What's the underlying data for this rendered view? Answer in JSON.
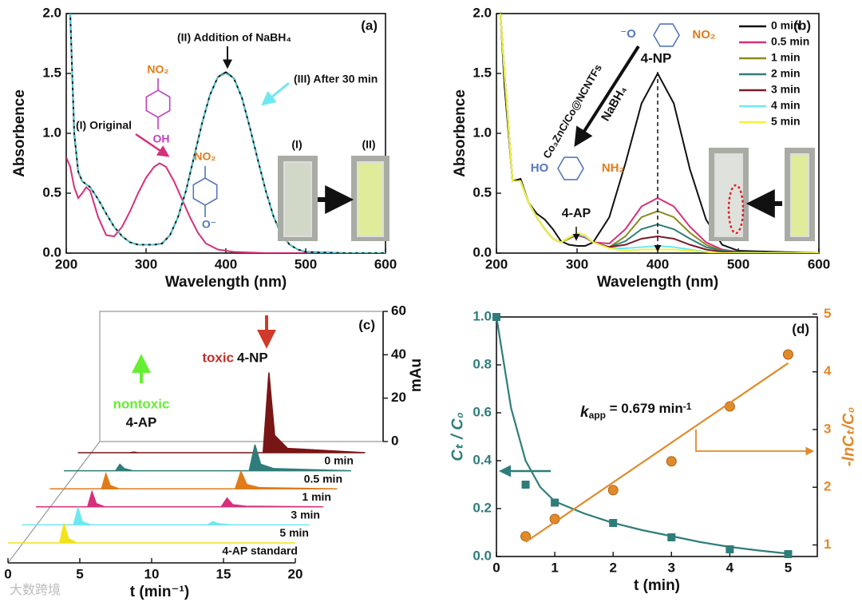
{
  "chart_data": [
    {
      "type": "line",
      "label": "(a)",
      "xlabel": "Wavelength (nm)",
      "ylabel": "Absorbence",
      "xlim": [
        200,
        600
      ],
      "ylim": [
        0,
        2.0
      ],
      "xticks": [
        200,
        300,
        400,
        500,
        600
      ],
      "yticks": [
        {
          "value": 0,
          "label": "0.0"
        },
        {
          "value": 0.5,
          "label": "0.5"
        },
        {
          "value": 1,
          "label": "1.0"
        },
        {
          "value": 1.5,
          "label": "1.5"
        },
        {
          "value": 2,
          "label": "2.0"
        }
      ],
      "series": [
        {
          "name": "(I) Original",
          "color": "#d6307a",
          "x": [
            200,
            205,
            210,
            215,
            220,
            225,
            230,
            240,
            250,
            260,
            270,
            280,
            290,
            300,
            310,
            317,
            325,
            335,
            345,
            355,
            365,
            375,
            390,
            410,
            450,
            500,
            600
          ],
          "values": [
            0.8,
            0.72,
            0.55,
            0.46,
            0.5,
            0.55,
            0.52,
            0.3,
            0.15,
            0.14,
            0.22,
            0.35,
            0.5,
            0.63,
            0.72,
            0.75,
            0.72,
            0.6,
            0.45,
            0.3,
            0.17,
            0.08,
            0.03,
            0.01,
            0,
            0,
            0
          ]
        },
        {
          "name": "(II) Addition of NaBH₄",
          "color": "#111111",
          "x": [
            205,
            210,
            215,
            220,
            230,
            240,
            250,
            260,
            270,
            280,
            290,
            300,
            310,
            320,
            330,
            340,
            350,
            360,
            370,
            380,
            390,
            400,
            410,
            420,
            430,
            440,
            450,
            460,
            470,
            480,
            490,
            500,
            550,
            600
          ],
          "values": [
            2.0,
            1.0,
            0.68,
            0.6,
            0.55,
            0.45,
            0.33,
            0.22,
            0.14,
            0.09,
            0.07,
            0.07,
            0.07,
            0.08,
            0.15,
            0.3,
            0.52,
            0.8,
            1.08,
            1.32,
            1.47,
            1.51,
            1.46,
            1.3,
            1.05,
            0.78,
            0.52,
            0.3,
            0.15,
            0.07,
            0.03,
            0.01,
            0,
            0
          ]
        },
        {
          "name": "(III) After 30 min",
          "color": "#4cc7d4",
          "dash": true,
          "x": [
            205,
            210,
            215,
            220,
            230,
            240,
            250,
            260,
            270,
            280,
            290,
            300,
            310,
            320,
            330,
            340,
            350,
            360,
            370,
            380,
            390,
            400,
            410,
            420,
            430,
            440,
            450,
            460,
            470,
            480,
            490,
            500,
            550,
            600
          ],
          "values": [
            2.0,
            1.02,
            0.69,
            0.6,
            0.55,
            0.45,
            0.33,
            0.22,
            0.14,
            0.09,
            0.07,
            0.07,
            0.07,
            0.08,
            0.15,
            0.3,
            0.52,
            0.8,
            1.08,
            1.32,
            1.47,
            1.5,
            1.46,
            1.3,
            1.05,
            0.78,
            0.52,
            0.3,
            0.15,
            0.07,
            0.03,
            0.01,
            0,
            0
          ]
        }
      ],
      "annotations": [
        "NO₂",
        "OH",
        "NO₂",
        "O⁻",
        "(I)",
        "(II)"
      ]
    },
    {
      "type": "line",
      "label": "(b)",
      "xlabel": "Wavelength (nm)",
      "ylabel": "Absorbence",
      "xlim": [
        200,
        600
      ],
      "ylim": [
        0,
        2.0
      ],
      "xticks": [
        200,
        300,
        400,
        500,
        600
      ],
      "yticks": [
        {
          "value": 0,
          "label": "0.0"
        },
        {
          "value": 0.5,
          "label": "0.5"
        },
        {
          "value": 1,
          "label": "1.0"
        },
        {
          "value": 1.5,
          "label": "1.5"
        },
        {
          "value": 2,
          "label": "2.0"
        }
      ],
      "legend": "upper right",
      "x": [
        205,
        210,
        220,
        230,
        240,
        250,
        260,
        270,
        280,
        290,
        300,
        310,
        320,
        340,
        360,
        380,
        400,
        420,
        440,
        460,
        480,
        500,
        600
      ],
      "series": [
        {
          "name": "0 min",
          "color": "#111111",
          "values": [
            2.0,
            1.4,
            0.6,
            0.62,
            0.42,
            0.33,
            0.28,
            0.2,
            0.1,
            0.07,
            0.06,
            0.06,
            0.09,
            0.3,
            0.75,
            1.25,
            1.5,
            1.25,
            0.7,
            0.28,
            0.07,
            0.02,
            0
          ]
        },
        {
          "name": "0.5 min",
          "color": "#d6307a",
          "values": [
            2.0,
            1.5,
            0.6,
            0.6,
            0.42,
            0.3,
            0.2,
            0.12,
            0.09,
            0.12,
            0.15,
            0.13,
            0.09,
            0.08,
            0.2,
            0.39,
            0.46,
            0.39,
            0.22,
            0.09,
            0.03,
            0.01,
            0
          ]
        },
        {
          "name": "1 min",
          "color": "#8a8a1e",
          "values": [
            2.0,
            1.5,
            0.6,
            0.6,
            0.42,
            0.3,
            0.2,
            0.12,
            0.09,
            0.12,
            0.16,
            0.14,
            0.09,
            0.05,
            0.14,
            0.3,
            0.35,
            0.3,
            0.17,
            0.07,
            0.02,
            0.01,
            0
          ]
        },
        {
          "name": "2 min",
          "color": "#2f7d7a",
          "values": [
            2.0,
            1.5,
            0.6,
            0.6,
            0.42,
            0.3,
            0.2,
            0.12,
            0.09,
            0.13,
            0.16,
            0.14,
            0.09,
            0.05,
            0.1,
            0.2,
            0.24,
            0.2,
            0.12,
            0.05,
            0.02,
            0.01,
            0
          ]
        },
        {
          "name": "3 min",
          "color": "#7a1a2a",
          "values": [
            2.0,
            1.5,
            0.6,
            0.6,
            0.42,
            0.3,
            0.2,
            0.12,
            0.09,
            0.13,
            0.16,
            0.14,
            0.09,
            0.05,
            0.07,
            0.12,
            0.14,
            0.12,
            0.07,
            0.03,
            0.01,
            0,
            0
          ]
        },
        {
          "name": "4 min",
          "color": "#6ee8f0",
          "values": [
            2.0,
            1.5,
            0.6,
            0.6,
            0.42,
            0.3,
            0.2,
            0.12,
            0.09,
            0.13,
            0.16,
            0.14,
            0.09,
            0.04,
            0.04,
            0.05,
            0.06,
            0.05,
            0.03,
            0.01,
            0,
            0,
            0
          ]
        },
        {
          "name": "5 min",
          "color": "#f2f23a",
          "values": [
            2.0,
            1.5,
            0.6,
            0.6,
            0.42,
            0.3,
            0.2,
            0.12,
            0.09,
            0.13,
            0.17,
            0.15,
            0.09,
            0.04,
            0.02,
            0.03,
            0.03,
            0.03,
            0.02,
            0.01,
            0,
            0,
            0
          ]
        }
      ],
      "annotations": [
        "4-NP",
        "4-AP",
        "Co₃ZnC/Co@NCNTFs",
        "NaBH₄",
        "⁻O",
        "NO₂",
        "HO",
        "NH₂"
      ]
    },
    {
      "type": "waterfall",
      "label": "(c)",
      "xlabel": "t (min⁻¹)",
      "ylabel": "mAu",
      "xlim": [
        0,
        20
      ],
      "xticks": [
        0,
        5,
        10,
        15,
        20
      ],
      "ylim": [
        0,
        60
      ],
      "yticks": [
        0,
        20,
        40,
        60
      ],
      "x": [
        0,
        3.6,
        3.9,
        4.2,
        4.8,
        12.9,
        13.3,
        13.7,
        14.6,
        20
      ],
      "series": [
        {
          "name": "0 min",
          "color": "#7a1515",
          "values": [
            0,
            0,
            0.3,
            0,
            0,
            0,
            37,
            8,
            2,
            0
          ]
        },
        {
          "name": "0.5 min",
          "color": "#2f7d7a",
          "values": [
            0,
            0,
            3,
            1,
            0,
            0,
            12,
            3,
            1,
            0
          ]
        },
        {
          "name": "1 min",
          "color": "#e07b1a",
          "values": [
            0,
            0,
            7,
            1.5,
            0,
            0,
            8,
            2,
            0.5,
            0
          ]
        },
        {
          "name": "3 min",
          "color": "#d6307a",
          "values": [
            0,
            0,
            7,
            1.5,
            0,
            0,
            4,
            1,
            0.3,
            0
          ]
        },
        {
          "name": "5 min",
          "color": "#6ee8f0",
          "values": [
            0,
            0,
            8,
            1.5,
            0,
            0,
            1.5,
            0.5,
            0,
            0
          ]
        },
        {
          "name": "4-AP standard",
          "color": "#f2e31a",
          "values": [
            0,
            0,
            9,
            2,
            0,
            0,
            0,
            0,
            0,
            0
          ]
        }
      ],
      "annotations": [
        "toxic",
        "4-NP",
        "nontoxic",
        "4-AP"
      ]
    },
    {
      "type": "scatter",
      "label": "(d)",
      "xlabel": "t (min)",
      "ylabel": "Cₜ / C₀",
      "y2label": "-lnCₜ/C₀",
      "xlim": [
        0,
        5.5
      ],
      "xticks": [
        0,
        1,
        2,
        3,
        4,
        5
      ],
      "ylim": [
        0,
        1.0
      ],
      "yticks": [
        {
          "value": 0,
          "label": "0.0"
        },
        {
          "value": 0.2,
          "label": "0.2"
        },
        {
          "value": 0.4,
          "label": "0.4"
        },
        {
          "value": 0.6,
          "label": "0.6"
        },
        {
          "value": 0.8,
          "label": "0.8"
        },
        {
          "value": 1,
          "label": "1.0"
        }
      ],
      "y2lim": [
        0.8,
        4.95
      ],
      "y2ticks": [
        1,
        2,
        3,
        4,
        5
      ],
      "series": [
        {
          "color": "#2f7d7a",
          "marker": "square",
          "x": [
            0,
            0.5,
            1,
            2,
            3,
            4,
            5
          ],
          "values": [
            1.0,
            0.3,
            0.225,
            0.14,
            0.08,
            0.03,
            0.01
          ]
        },
        {
          "color": "#2f7d7a",
          "x": [
            0,
            0.25,
            0.5,
            0.75,
            1,
            1.5,
            2,
            2.5,
            3,
            3.5,
            4,
            4.5,
            5
          ],
          "values": [
            1.0,
            0.62,
            0.4,
            0.29,
            0.23,
            0.18,
            0.14,
            0.11,
            0.085,
            0.06,
            0.04,
            0.025,
            0.012
          ]
        },
        {
          "color": "#e08a2a",
          "marker": "circle",
          "axis": "y2",
          "x": [
            0.5,
            1,
            2,
            3,
            4,
            5
          ],
          "values": [
            1.15,
            1.45,
            1.95,
            2.45,
            3.4,
            4.3
          ]
        },
        {
          "color": "#e08a2a",
          "axis": "y2",
          "x": [
            0.5,
            5
          ],
          "values": [
            1.05,
            4.15
          ]
        }
      ],
      "annotations": [
        "k",
        "app",
        " = 0.679 min",
        "-1"
      ]
    }
  ],
  "watermark": "大数跨境"
}
